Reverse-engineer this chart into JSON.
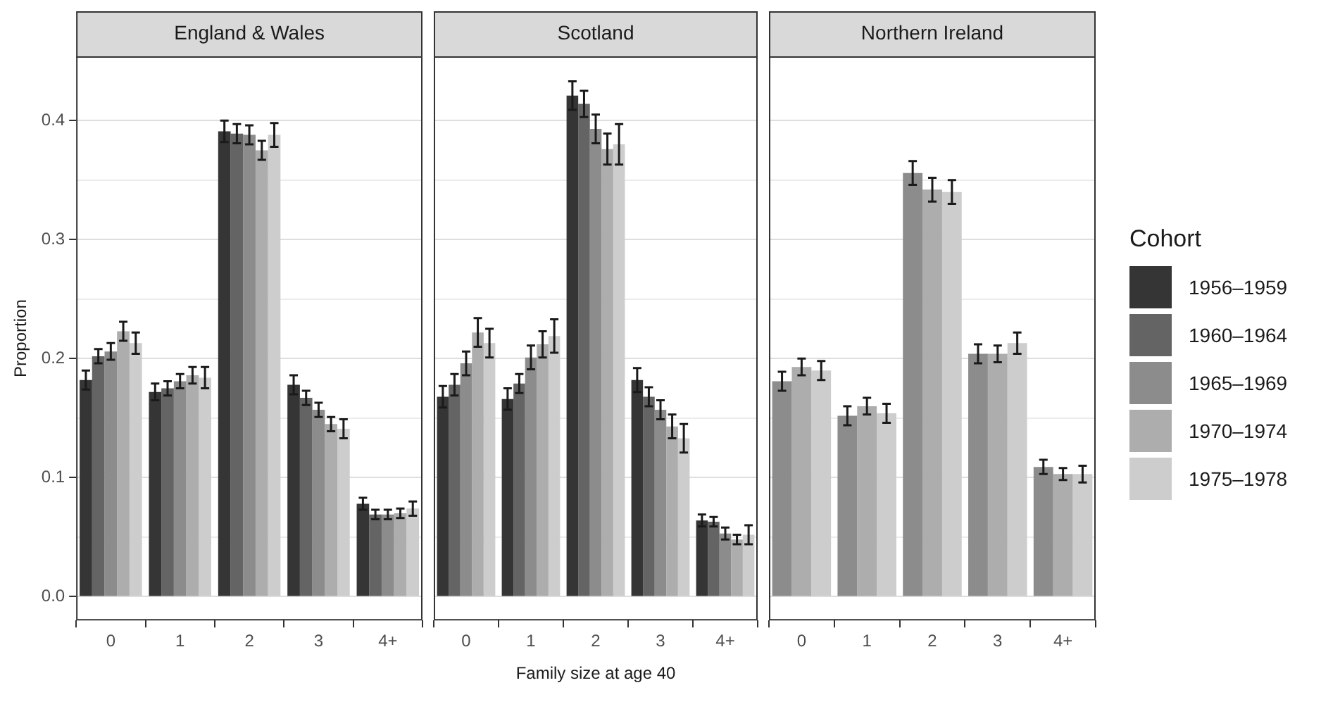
{
  "chart_data": [
    {
      "type": "bar",
      "title": "England & Wales",
      "ylabel": "Proportion",
      "legend_title": "Cohort",
      "legend": "right",
      "grid": "y",
      "categories": [
        "0",
        "1",
        "2",
        "3",
        "4+"
      ],
      "ylim": [
        -0.02,
        0.454
      ],
      "yticks": [
        {
          "value": 0,
          "label": "0.0"
        },
        {
          "value": 0.05,
          "label": null
        },
        0.1,
        {
          "value": 0.15,
          "label": null
        },
        0.2,
        {
          "value": 0.25,
          "label": null
        },
        0.3,
        {
          "value": 0.35,
          "label": null
        },
        0.4
      ],
      "series": [
        {
          "name": "1956–1959",
          "color": "#353535",
          "values": [
            0.182,
            0.172,
            0.391,
            0.178,
            0.078
          ],
          "errors": [
            0.008,
            0.007,
            0.009,
            0.008,
            0.005
          ]
        },
        {
          "name": "1960–1964",
          "color": "#646464",
          "values": [
            0.202,
            0.175,
            0.389,
            0.167,
            0.069
          ],
          "errors": [
            0.006,
            0.006,
            0.008,
            0.006,
            0.004
          ]
        },
        {
          "name": "1965–1969",
          "color": "#8c8c8c",
          "values": [
            0.206,
            0.181,
            0.388,
            0.157,
            0.069
          ],
          "errors": [
            0.007,
            0.006,
            0.008,
            0.006,
            0.004
          ]
        },
        {
          "name": "1970–1974",
          "color": "#adadad",
          "values": [
            0.223,
            0.186,
            0.375,
            0.145,
            0.07
          ],
          "errors": [
            0.008,
            0.007,
            0.008,
            0.006,
            0.004
          ]
        },
        {
          "name": "1975–1978",
          "color": "#cdcdcd",
          "values": [
            0.213,
            0.184,
            0.388,
            0.141,
            0.074
          ],
          "errors": [
            0.009,
            0.009,
            0.01,
            0.008,
            0.006
          ]
        }
      ]
    },
    {
      "type": "bar",
      "title": "Scotland",
      "xlabel": "Family size at age 40",
      "grid": "y",
      "tick_labels": "x",
      "categories": [
        "0",
        "1",
        "2",
        "3",
        "4+"
      ],
      "ylim": [
        -0.02,
        0.454
      ],
      "yticks": [
        0,
        {
          "value": 0.05,
          "label": null
        },
        0.1,
        {
          "value": 0.15,
          "label": null
        },
        0.2,
        {
          "value": 0.25,
          "label": null
        },
        0.3,
        {
          "value": 0.35,
          "label": null
        },
        0.4
      ],
      "series": [
        {
          "color": "#353535",
          "values": [
            0.168,
            0.166,
            0.421,
            0.182,
            0.064
          ],
          "errors": [
            0.009,
            0.009,
            0.012,
            0.01,
            0.005
          ]
        },
        {
          "color": "#646464",
          "values": [
            0.178,
            0.179,
            0.414,
            0.168,
            0.063
          ],
          "errors": [
            0.009,
            0.008,
            0.011,
            0.008,
            0.004
          ]
        },
        {
          "color": "#8c8c8c",
          "values": [
            0.196,
            0.201,
            0.393,
            0.157,
            0.053
          ],
          "errors": [
            0.01,
            0.01,
            0.012,
            0.008,
            0.005
          ]
        },
        {
          "color": "#adadad",
          "values": [
            0.222,
            0.212,
            0.376,
            0.143,
            0.048
          ],
          "errors": [
            0.012,
            0.011,
            0.013,
            0.01,
            0.004
          ]
        },
        {
          "color": "#cdcdcd",
          "values": [
            0.213,
            0.219,
            0.38,
            0.133,
            0.052
          ],
          "errors": [
            0.012,
            0.014,
            0.017,
            0.012,
            0.008
          ]
        }
      ]
    },
    {
      "type": "bar",
      "title": "Northern Ireland",
      "grid": "y",
      "tick_labels": "x",
      "categories": [
        "0",
        "1",
        "2",
        "3",
        "4+"
      ],
      "ylim": [
        -0.02,
        0.454
      ],
      "yticks": [
        0,
        {
          "value": 0.05,
          "label": null
        },
        0.1,
        {
          "value": 0.15,
          "label": null
        },
        0.2,
        {
          "value": 0.25,
          "label": null
        },
        0.3,
        {
          "value": 0.35,
          "label": null
        },
        0.4
      ],
      "series": [
        {
          "color": "#8c8c8c",
          "values": [
            0.181,
            0.152,
            0.356,
            0.204,
            0.109
          ],
          "errors": [
            0.008,
            0.008,
            0.01,
            0.008,
            0.006
          ]
        },
        {
          "color": "#adadad",
          "values": [
            0.193,
            0.16,
            0.342,
            0.204,
            0.103
          ],
          "errors": [
            0.007,
            0.007,
            0.01,
            0.007,
            0.005
          ]
        },
        {
          "color": "#cdcdcd",
          "values": [
            0.19,
            0.154,
            0.34,
            0.213,
            0.103
          ],
          "errors": [
            0.008,
            0.008,
            0.01,
            0.009,
            0.007
          ]
        }
      ]
    }
  ]
}
